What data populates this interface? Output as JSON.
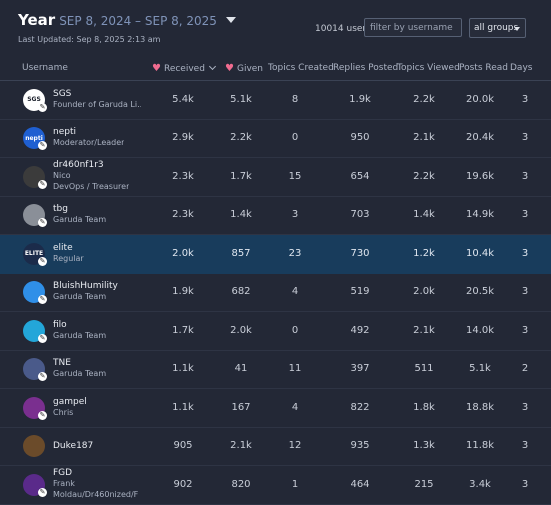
{
  "header": {
    "period_label": "Year",
    "period_range": "SEP 8, 2024 – SEP 8, 2025",
    "last_updated": "Last Updated: Sep 8, 2025 2:13 am",
    "users_count": "10014 users",
    "filter_placeholder": "filter by username",
    "group_select_value": "all groups"
  },
  "columns": {
    "username": "Username",
    "received": "Received",
    "given": "Given",
    "topics_created": "Topics Created",
    "replies_posted": "Replies Posted",
    "topics_viewed": "Topics Viewed",
    "posts_read": "Posts Read",
    "days": "Days"
  },
  "rows": [
    {
      "name": "SGS",
      "sub": "Founder of Garuda Li...",
      "received": "5.4k",
      "given": "5.1k",
      "topics": "8",
      "replies": "1.9k",
      "viewed": "2.2k",
      "read": "20.0k",
      "days": "3",
      "avatar_color": "#ffffff",
      "avatar_label": "SGS"
    },
    {
      "name": "nepti",
      "sub": "Moderator/Leader",
      "received": "2.9k",
      "given": "2.2k",
      "topics": "0",
      "replies": "950",
      "viewed": "2.1k",
      "read": "20.4k",
      "days": "3",
      "avatar_color": "#1f5fd1",
      "avatar_label": "nepti"
    },
    {
      "name": "dr460nf1r3",
      "sub": "Nico",
      "sub2": "DevOps / Treasurer",
      "received": "2.3k",
      "given": "1.7k",
      "topics": "15",
      "replies": "654",
      "viewed": "2.2k",
      "read": "19.6k",
      "days": "3",
      "avatar_color": "#3b3b3b",
      "avatar_label": ""
    },
    {
      "name": "tbg",
      "sub": "Garuda Team",
      "received": "2.3k",
      "given": "1.4k",
      "topics": "3",
      "replies": "703",
      "viewed": "1.4k",
      "read": "14.9k",
      "days": "3",
      "avatar_color": "#8a8f98",
      "avatar_label": ""
    },
    {
      "name": "elite",
      "sub": "Regular",
      "received": "2.0k",
      "given": "857",
      "topics": "23",
      "replies": "730",
      "viewed": "1.2k",
      "read": "10.4k",
      "days": "3",
      "avatar_color": "#1b2b4a",
      "avatar_label": "ELITE"
    },
    {
      "name": "BluishHumility",
      "sub": "Garuda Team",
      "received": "1.9k",
      "given": "682",
      "topics": "4",
      "replies": "519",
      "viewed": "2.0k",
      "read": "20.5k",
      "days": "3",
      "avatar_color": "#2f8fe8",
      "avatar_label": ""
    },
    {
      "name": "filo",
      "sub": "Garuda Team",
      "received": "1.7k",
      "given": "2.0k",
      "topics": "0",
      "replies": "492",
      "viewed": "2.1k",
      "read": "14.0k",
      "days": "3",
      "avatar_color": "#23a6d9",
      "avatar_label": ""
    },
    {
      "name": "TNE",
      "sub": "Garuda Team",
      "received": "1.1k",
      "given": "41",
      "topics": "11",
      "replies": "397",
      "viewed": "511",
      "read": "5.1k",
      "days": "2",
      "avatar_color": "#4a5a8a",
      "avatar_label": ""
    },
    {
      "name": "gampel",
      "sub": "Chris",
      "received": "1.1k",
      "given": "167",
      "topics": "4",
      "replies": "822",
      "viewed": "1.8k",
      "read": "18.8k",
      "days": "3",
      "avatar_color": "#7a2f8f",
      "avatar_label": ""
    },
    {
      "name": "Duke187",
      "sub": "",
      "received": "905",
      "given": "2.1k",
      "topics": "12",
      "replies": "935",
      "viewed": "1.3k",
      "read": "11.8k",
      "days": "3",
      "avatar_color": "#6b4b2a",
      "avatar_label": ""
    },
    {
      "name": "FGD",
      "sub": "Frank",
      "sub2": "Moldau/Dr460nized/F",
      "received": "902",
      "given": "820",
      "topics": "1",
      "replies": "464",
      "viewed": "215",
      "read": "3.4k",
      "days": "3",
      "avatar_color": "#5a2a8a",
      "avatar_label": ""
    }
  ]
}
